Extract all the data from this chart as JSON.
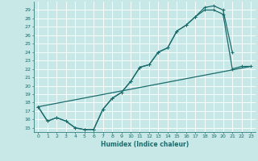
{
  "title": "",
  "xlabel": "Humidex (Indice chaleur)",
  "xlim": [
    -0.5,
    23.5
  ],
  "ylim": [
    14.5,
    30.0
  ],
  "xticks": [
    0,
    1,
    2,
    3,
    4,
    5,
    6,
    7,
    8,
    9,
    10,
    11,
    12,
    13,
    14,
    15,
    16,
    17,
    18,
    19,
    20,
    21,
    22,
    23
  ],
  "yticks": [
    15,
    16,
    17,
    18,
    19,
    20,
    21,
    22,
    23,
    24,
    25,
    26,
    27,
    28,
    29
  ],
  "bg_color": "#c8e8e8",
  "grid_color": "#ffffff",
  "line_color": "#1a6b6b",
  "curve1_x": [
    0,
    1,
    2,
    3,
    4,
    5,
    6,
    7,
    8,
    9,
    10,
    11,
    12,
    13,
    14,
    15,
    16,
    17,
    18,
    19,
    20,
    21
  ],
  "curve1_y": [
    17.5,
    15.8,
    16.2,
    15.8,
    15.0,
    14.8,
    14.8,
    17.2,
    18.5,
    19.2,
    20.5,
    22.2,
    22.5,
    24.0,
    24.5,
    26.5,
    27.2,
    28.2,
    29.3,
    29.5,
    29.0,
    24.0
  ],
  "curve2_x": [
    0,
    1,
    2,
    3,
    4,
    5,
    6,
    7,
    8,
    9,
    10,
    11,
    12,
    13,
    14,
    15,
    16,
    17,
    18,
    19,
    20,
    21,
    22,
    23
  ],
  "curve2_y": [
    17.5,
    15.8,
    16.2,
    15.8,
    15.0,
    14.8,
    14.8,
    17.2,
    18.5,
    19.2,
    20.5,
    22.2,
    22.5,
    24.0,
    24.5,
    26.5,
    27.2,
    28.2,
    29.0,
    29.0,
    28.5,
    22.0,
    22.3,
    22.3
  ],
  "line3_x": [
    0,
    23
  ],
  "line3_y": [
    17.5,
    22.3
  ]
}
